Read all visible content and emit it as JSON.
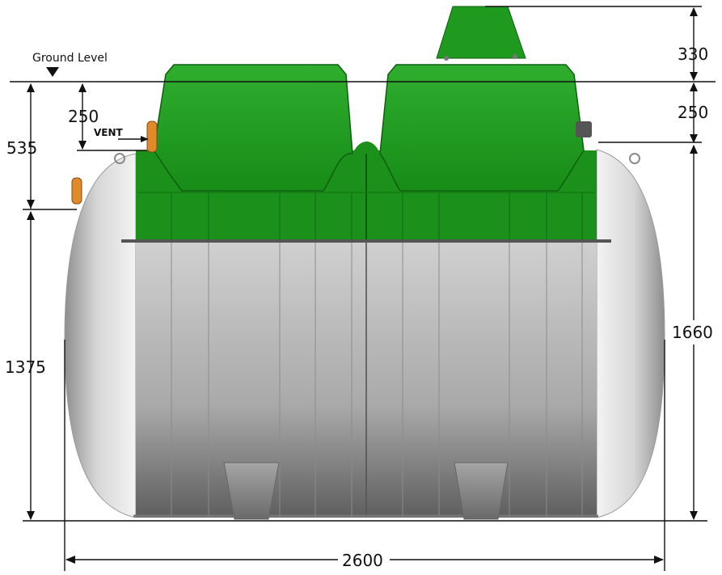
{
  "labels": {
    "ground_level": "Ground Level",
    "vent": "VENT"
  },
  "dimensions": {
    "top_right_upper": "330",
    "top_right_lower": "250",
    "left_upper": "535",
    "left_inner": "250",
    "left_lower": "1375",
    "right_height": "1660",
    "width": "2600"
  },
  "colors": {
    "lid_green": "#1f9a1f",
    "lid_dark": "#137213",
    "body_grey": "#b9b9b9",
    "end_cap": "#dedede",
    "vent_orange": "#e08a2a"
  },
  "icons": {
    "ground_marker": "down-triangle-icon"
  }
}
